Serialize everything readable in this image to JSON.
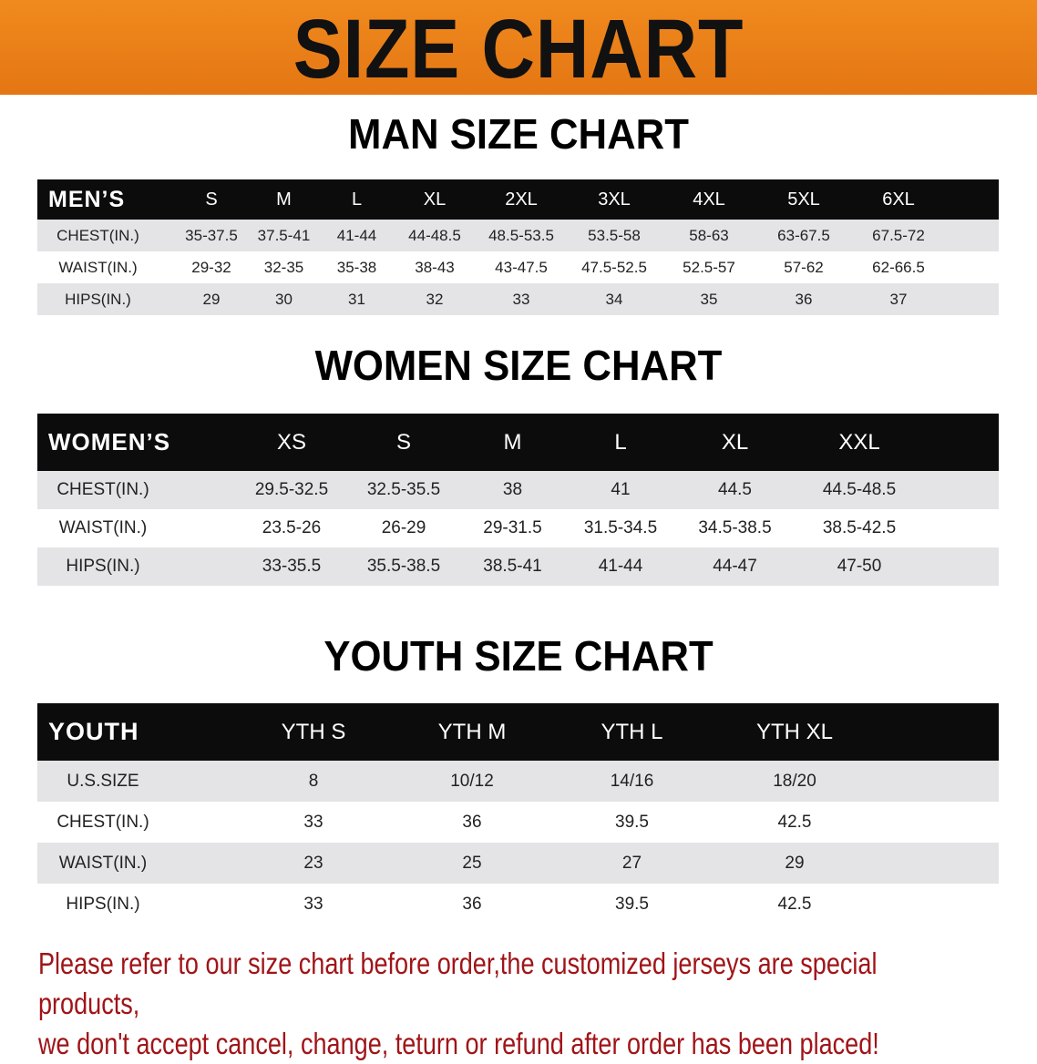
{
  "banner": {
    "title": "SIZE CHART",
    "color": "#ec8018"
  },
  "men": {
    "title": "MAN SIZE CHART",
    "header": "MEN’S",
    "sizes": [
      "S",
      "M",
      "L",
      "XL",
      "2XL",
      "3XL",
      "4XL",
      "5XL",
      "6XL"
    ],
    "rows": [
      {
        "label": "CHEST(IN.)",
        "values": [
          "35-37.5",
          "37.5-41",
          "41-44",
          "44-48.5",
          "48.5-53.5",
          "53.5-58",
          "58-63",
          "63-67.5",
          "67.5-72"
        ]
      },
      {
        "label": "WAIST(IN.)",
        "values": [
          "29-32",
          "32-35",
          "35-38",
          "38-43",
          "43-47.5",
          "47.5-52.5",
          "52.5-57",
          "57-62",
          "62-66.5"
        ]
      },
      {
        "label": "HIPS(IN.)",
        "values": [
          "29",
          "30",
          "31",
          "32",
          "33",
          "34",
          "35",
          "36",
          "37"
        ]
      }
    ]
  },
  "women": {
    "title": "WOMEN SIZE CHART",
    "header": "WOMEN’S",
    "sizes": [
      "XS",
      "S",
      "M",
      "L",
      "XL",
      "XXL"
    ],
    "rows": [
      {
        "label": "CHEST(IN.)",
        "values": [
          "29.5-32.5",
          "32.5-35.5",
          "38",
          "41",
          "44.5",
          "44.5-48.5"
        ]
      },
      {
        "label": "WAIST(IN.)",
        "values": [
          "23.5-26",
          "26-29",
          "29-31.5",
          "31.5-34.5",
          "34.5-38.5",
          "38.5-42.5"
        ]
      },
      {
        "label": "HIPS(IN.)",
        "values": [
          "33-35.5",
          "35.5-38.5",
          "38.5-41",
          "41-44",
          "44-47",
          "47-50"
        ]
      }
    ]
  },
  "youth": {
    "title": "YOUTH SIZE CHART",
    "header": "YOUTH",
    "sizes": [
      "YTH S",
      "YTH M",
      "YTH L",
      "YTH XL"
    ],
    "rows": [
      {
        "label": "U.S.SIZE",
        "values": [
          "8",
          "10/12",
          "14/16",
          "18/20"
        ]
      },
      {
        "label": "CHEST(IN.)",
        "values": [
          "33",
          "36",
          "39.5",
          "42.5"
        ]
      },
      {
        "label": "WAIST(IN.)",
        "values": [
          "23",
          "25",
          "27",
          "29"
        ]
      },
      {
        "label": "HIPS(IN.)",
        "values": [
          "33",
          "36",
          "39.5",
          "42.5"
        ]
      }
    ]
  },
  "notice": {
    "line1": "Please refer to our size chart before order,the customized jerseys are special products,",
    "line2": "we don't accept cancel, change, teturn or refund after order has been placed!",
    "color": "#a01418"
  }
}
